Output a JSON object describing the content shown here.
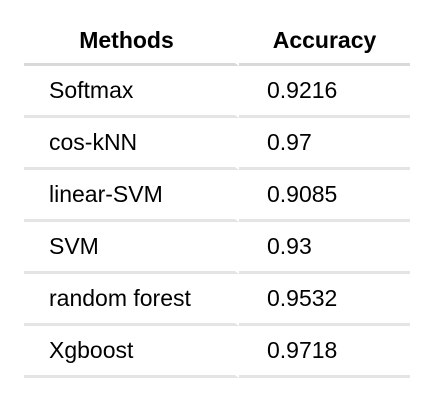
{
  "table": {
    "headers": [
      "Methods",
      "Accuracy"
    ],
    "rows": [
      {
        "method": "Softmax",
        "accuracy": "0.9216"
      },
      {
        "method": "cos-kNN",
        "accuracy": "0.97"
      },
      {
        "method": "linear-SVM",
        "accuracy": "0.9085"
      },
      {
        "method": "SVM",
        "accuracy": "0.93"
      },
      {
        "method": "random forest",
        "accuracy": "0.9532"
      },
      {
        "method": "Xgboost",
        "accuracy": "0.9718"
      }
    ]
  }
}
